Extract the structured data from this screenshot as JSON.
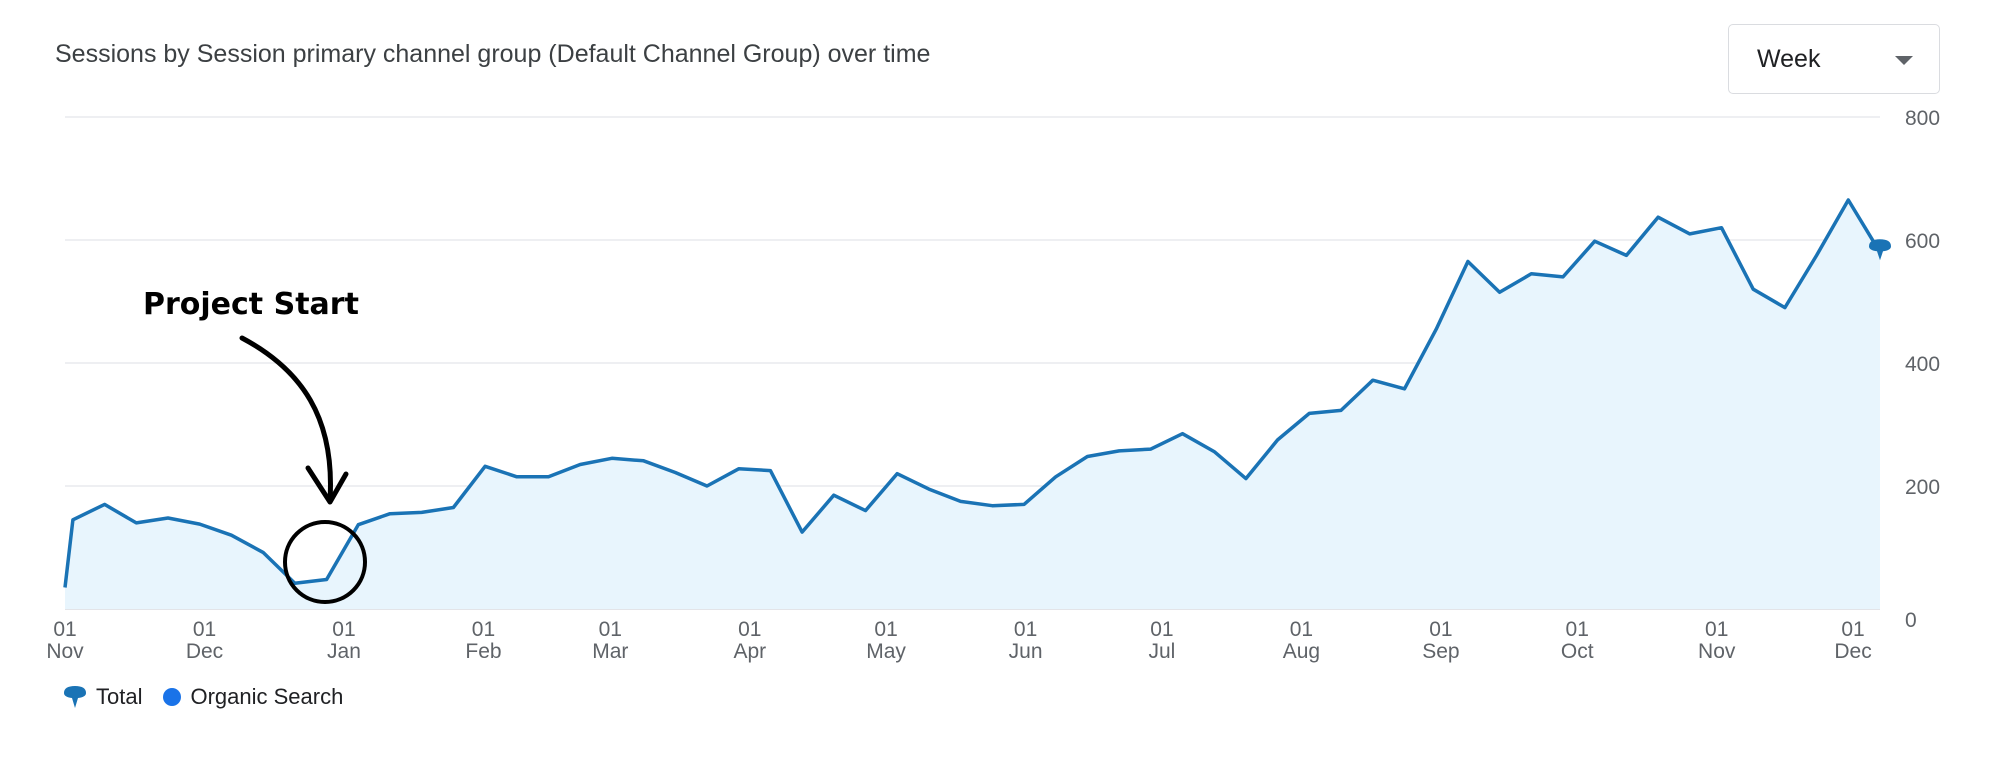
{
  "title": "Sessions by Session primary channel group (Default Channel Group) over time",
  "period_select": {
    "value": "Week"
  },
  "legend": [
    {
      "label": "Total",
      "icon": "pin-icon",
      "color": "#1a73b5"
    },
    {
      "label": "Organic Search",
      "icon": "dot-icon",
      "color": "#1a73e8"
    }
  ],
  "annotation": {
    "text": "Project Start"
  },
  "chart_data": {
    "type": "area",
    "title": "Sessions by Session primary channel group (Default Channel Group) over time",
    "xlabel": "",
    "ylabel": "",
    "ylim": [
      0,
      800
    ],
    "y_ticks": [
      0,
      200,
      400,
      600,
      800
    ],
    "y_axis_side": "right",
    "grid": true,
    "legend_position": "bottom-left",
    "line_color": "#1a73b5",
    "fill_color": "#e8f5fd",
    "month_ticks": [
      {
        "day": "01",
        "month": "Nov",
        "week": 0
      },
      {
        "day": "01",
        "month": "Dec",
        "week": 4.4
      },
      {
        "day": "01",
        "month": "Jan",
        "week": 8.8
      },
      {
        "day": "01",
        "month": "Feb",
        "week": 13.2
      },
      {
        "day": "01",
        "month": "Mar",
        "week": 17.2
      },
      {
        "day": "01",
        "month": "Apr",
        "week": 21.6
      },
      {
        "day": "01",
        "month": "May",
        "week": 25.9
      },
      {
        "day": "01",
        "month": "Jun",
        "week": 30.3
      },
      {
        "day": "01",
        "month": "Jul",
        "week": 34.6
      },
      {
        "day": "01",
        "month": "Aug",
        "week": 39.0
      },
      {
        "day": "01",
        "month": "Sep",
        "week": 43.4
      },
      {
        "day": "01",
        "month": "Oct",
        "week": 47.7
      },
      {
        "day": "01",
        "month": "Nov",
        "week": 52.1
      },
      {
        "day": "01",
        "month": "Dec",
        "week": 56.4
      }
    ],
    "series": [
      {
        "name": "Total",
        "x": [
          0,
          0.25,
          1.25,
          2.25,
          3.25,
          4.25,
          5.25,
          6.25,
          7.25,
          8.25,
          9.25,
          10.25,
          11.25,
          12.25,
          13.25,
          14.25,
          15.25,
          16.25,
          17.25,
          18.25,
          19.25,
          20.25,
          21.25,
          22.25,
          23.25,
          24.25,
          25.25,
          26.25,
          27.25,
          28.25,
          29.25,
          30.25,
          31.25,
          32.25,
          33.25,
          34.25,
          35.25,
          36.25,
          37.25,
          38.25,
          39.25,
          40.25,
          41.25,
          42.25,
          43.25,
          44.25,
          45.25,
          46.25,
          47.25,
          48.25,
          49.25,
          50.25,
          51.25,
          52.25,
          53.25,
          54.25,
          55.25,
          56.25,
          57.25
        ],
        "values": [
          35,
          145,
          170,
          140,
          148,
          138,
          120,
          92,
          42,
          48,
          137,
          155,
          157,
          165,
          232,
          215,
          215,
          235,
          245,
          241,
          222,
          200,
          228,
          225,
          125,
          185,
          160,
          220,
          195,
          175,
          168,
          170,
          215,
          248,
          257,
          260,
          285,
          256,
          212,
          275,
          318,
          323,
          372,
          358,
          455,
          565,
          515,
          545,
          540,
          598,
          575,
          637,
          610,
          620,
          520,
          490,
          575,
          665,
          580
        ]
      }
    ]
  }
}
